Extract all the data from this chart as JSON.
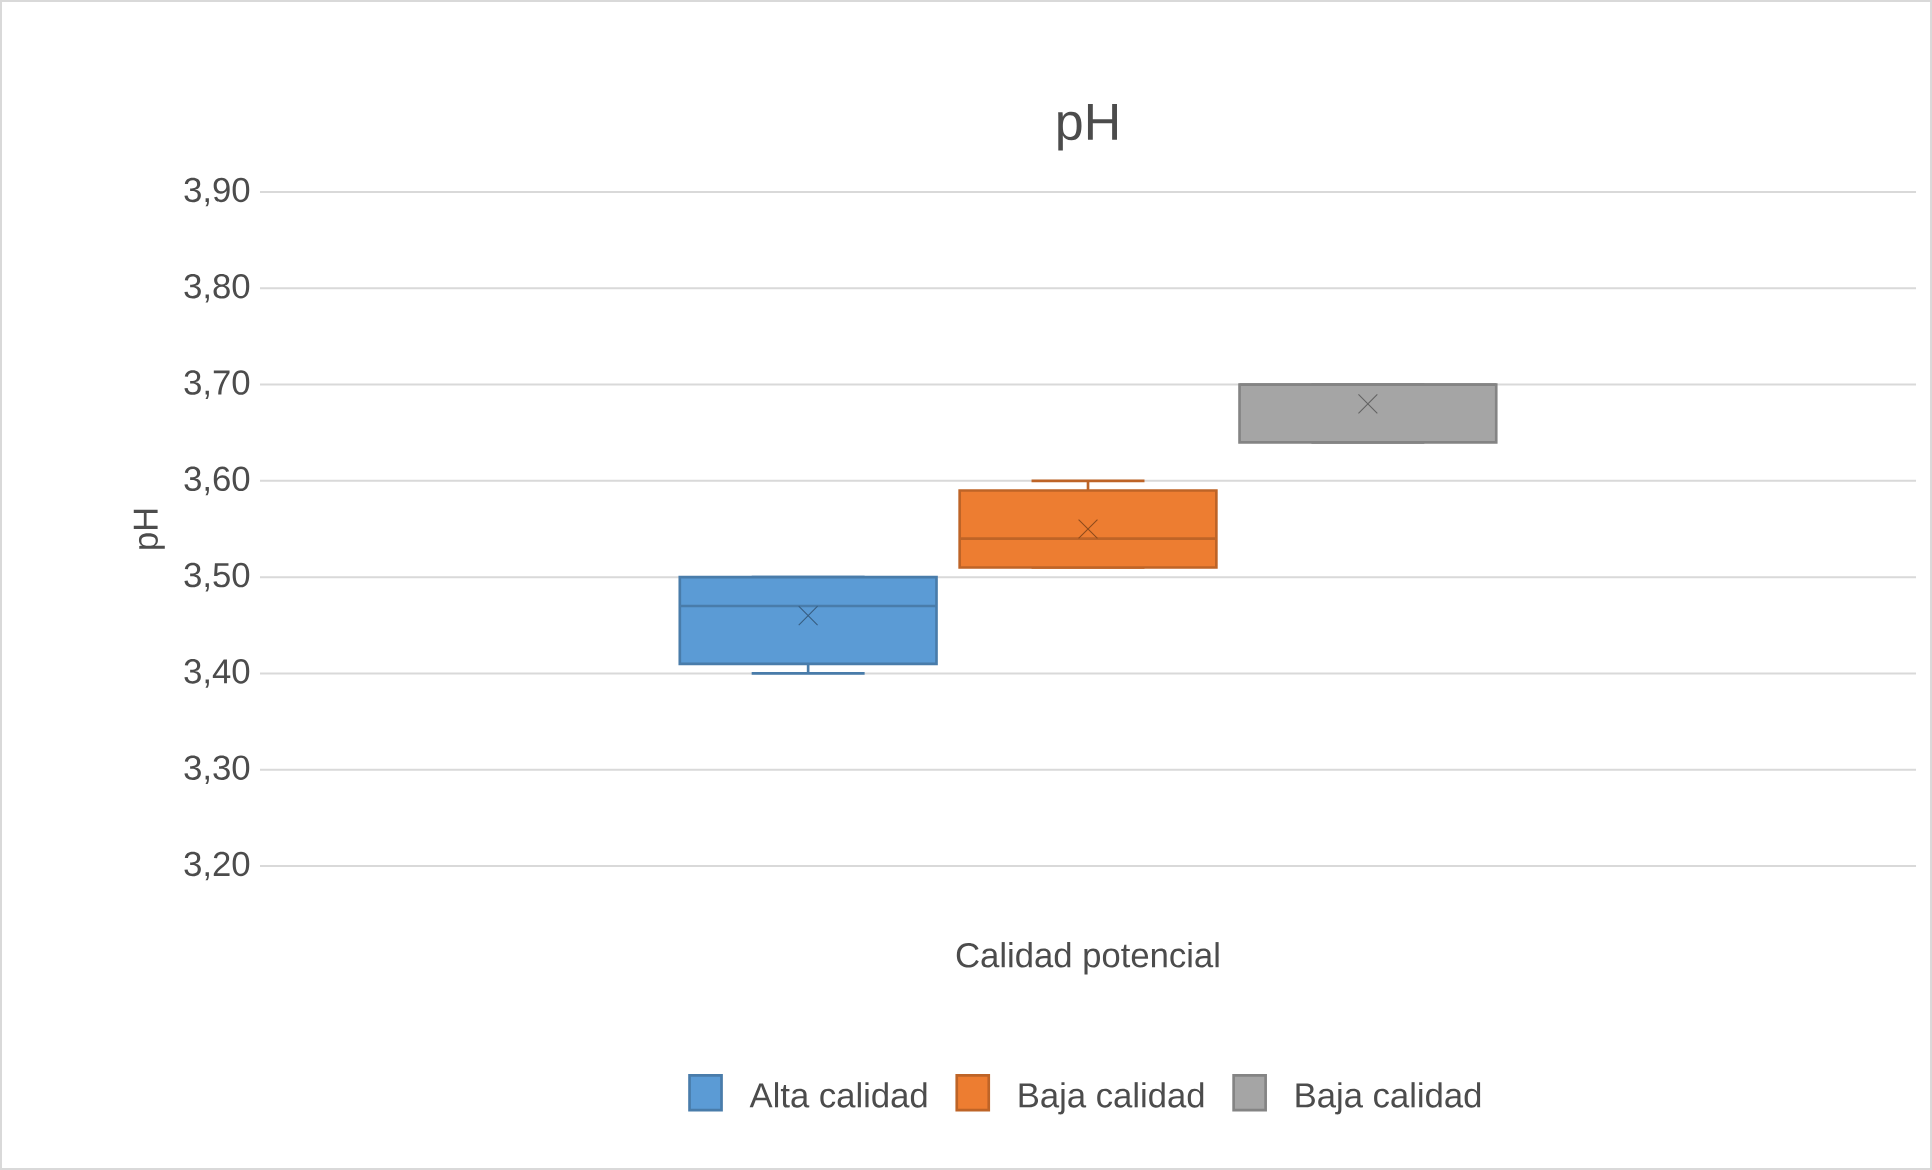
{
  "chart_data": {
    "type": "box",
    "title": "pH",
    "ylabel": "pH",
    "categories": [
      "Calidad potencial"
    ],
    "ylim": [
      3.2,
      3.9
    ],
    "yticks": [
      {
        "value": 3.2,
        "label": "3,20"
      },
      {
        "value": 3.3,
        "label": "3,30"
      },
      {
        "value": 3.4,
        "label": "3,40"
      },
      {
        "value": 3.5,
        "label": "3,50"
      },
      {
        "value": 3.6,
        "label": "3,60"
      },
      {
        "value": 3.7,
        "label": "3,70"
      },
      {
        "value": 3.8,
        "label": "3,80"
      },
      {
        "value": 3.9,
        "label": "3,90"
      }
    ],
    "grid": "y",
    "legend": "bottom",
    "series": [
      {
        "name": "Alta calidad",
        "color": "#5b9bd5",
        "boxes": [
          {
            "low": 3.4,
            "q1": 3.41,
            "median": 3.47,
            "q3": 3.5,
            "high": 3.5,
            "mean": 3.46
          }
        ]
      },
      {
        "name": "Baja calidad",
        "color": "#ed7d31",
        "boxes": [
          {
            "low": 3.51,
            "q1": 3.51,
            "median": 3.54,
            "q3": 3.59,
            "high": 3.6,
            "mean": 3.55
          }
        ]
      },
      {
        "name": "Baja calidad",
        "color": "#a5a5a5",
        "boxes": [
          {
            "low": 3.64,
            "q1": 3.64,
            "median": 3.7,
            "q3": 3.7,
            "high": 3.7,
            "mean": 3.68
          }
        ]
      }
    ]
  }
}
